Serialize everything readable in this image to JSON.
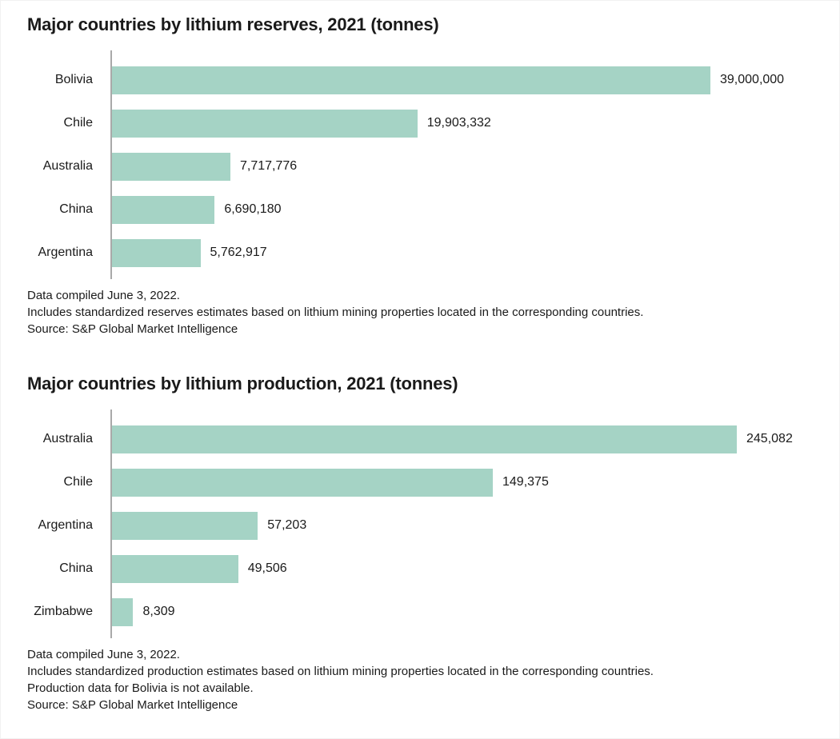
{
  "chart_data": [
    {
      "type": "bar",
      "orientation": "horizontal",
      "title": "Major countries by lithium reserves, 2021 (tonnes)",
      "categories": [
        "Bolivia",
        "Chile",
        "Australia",
        "China",
        "Argentina"
      ],
      "values": [
        39000000,
        19903332,
        7717776,
        6690180,
        5762917
      ],
      "value_labels": [
        "39,000,000",
        "19,903,332",
        "7,717,776",
        "6,690,180",
        "5,762,917"
      ],
      "xlim": [
        0,
        40000000
      ],
      "grid": false,
      "legend": false,
      "bar_color": "#a5d3c5",
      "axis_color": "#a9a9a9",
      "footnotes": [
        "Data compiled June 3, 2022.",
        "Includes standardized reserves estimates based on lithium mining properties located in the corresponding countries.",
        "Source: S&P Global Market Intelligence"
      ]
    },
    {
      "type": "bar",
      "orientation": "horizontal",
      "title": "Major countries by lithium production, 2021 (tonnes)",
      "categories": [
        "Australia",
        "Chile",
        "Argentina",
        "China",
        "Zimbabwe"
      ],
      "values": [
        245082,
        149375,
        57203,
        49506,
        8309
      ],
      "value_labels": [
        "245,082",
        "149,375",
        "57,203",
        "49,506",
        "8,309"
      ],
      "xlim": [
        0,
        250000
      ],
      "grid": false,
      "legend": false,
      "bar_color": "#a5d3c5",
      "axis_color": "#a9a9a9",
      "footnotes": [
        "Data compiled June 3, 2022.",
        "Includes standardized production estimates based on lithium mining properties located in the corresponding countries.",
        "Production data for Bolivia is not available.",
        "Source: S&P Global Market Intelligence"
      ]
    }
  ]
}
